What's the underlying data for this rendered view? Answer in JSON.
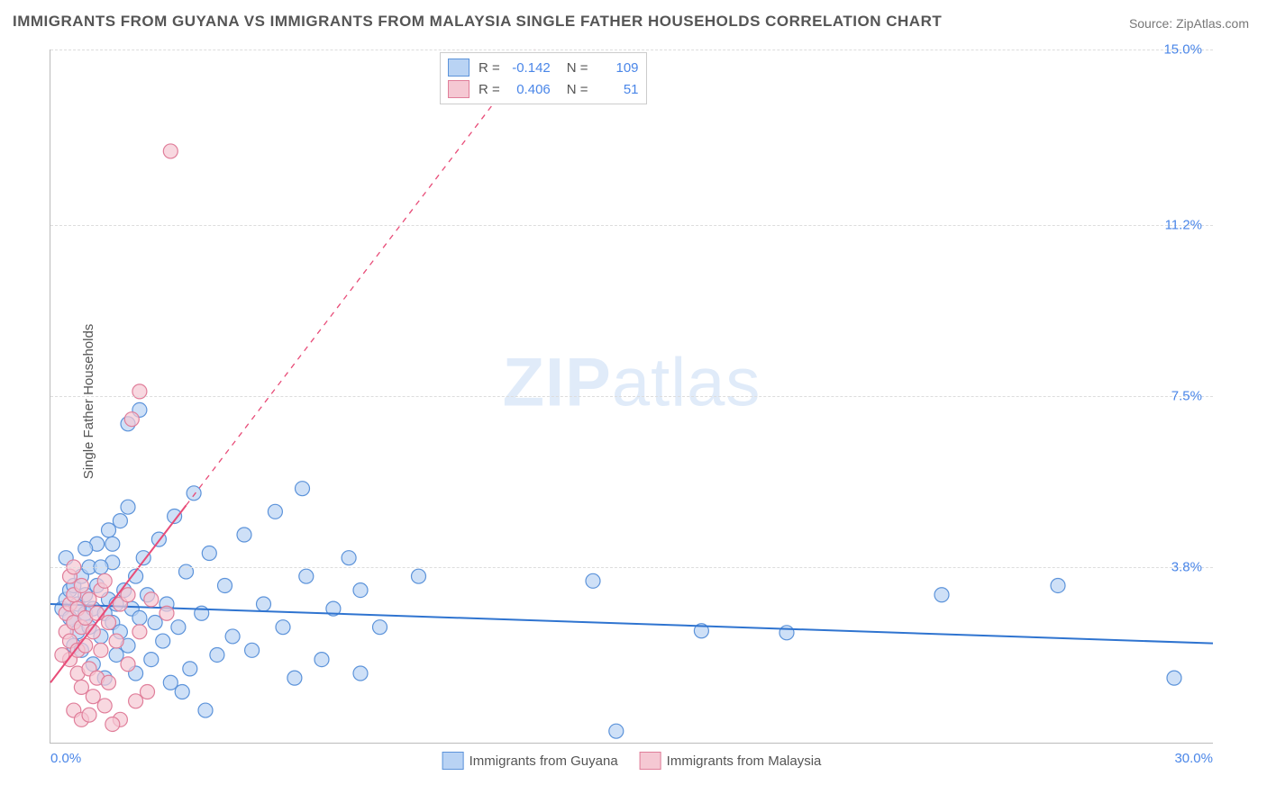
{
  "title": "IMMIGRANTS FROM GUYANA VS IMMIGRANTS FROM MALAYSIA SINGLE FATHER HOUSEHOLDS CORRELATION CHART",
  "source_prefix": "Source: ",
  "source_name": "ZipAtlas.com",
  "y_axis_label": "Single Father Households",
  "watermark_bold": "ZIP",
  "watermark_light": "atlas",
  "chart": {
    "type": "scatter",
    "xlim": [
      0,
      30
    ],
    "ylim": [
      0,
      15
    ],
    "x_ticks": [
      {
        "v": 0,
        "label": "0.0%"
      },
      {
        "v": 30,
        "label": "30.0%"
      }
    ],
    "y_ticks": [
      {
        "v": 3.8,
        "label": "3.8%"
      },
      {
        "v": 7.5,
        "label": "7.5%"
      },
      {
        "v": 11.2,
        "label": "11.2%"
      },
      {
        "v": 15.0,
        "label": "15.0%"
      }
    ],
    "grid_color": "#dddddd",
    "axis_color": "#bbbbbb",
    "background_color": "#ffffff",
    "marker_radius": 8,
    "marker_stroke_width": 1.2,
    "line_width": 2,
    "series": [
      {
        "id": "guyana",
        "label": "Immigrants from Guyana",
        "fill": "#b9d3f4",
        "stroke": "#5c93da",
        "trend_color": "#2f74d0",
        "trend_dash": "none",
        "stats": {
          "R": "-0.142",
          "N": "109"
        },
        "trend": {
          "x1": 0,
          "y1": 3.0,
          "x2": 30,
          "y2": 2.15
        },
        "points": [
          [
            0.3,
            2.9
          ],
          [
            0.4,
            3.1
          ],
          [
            0.5,
            2.7
          ],
          [
            0.5,
            3.3
          ],
          [
            0.6,
            2.6
          ],
          [
            0.6,
            3.4
          ],
          [
            0.6,
            2.1
          ],
          [
            0.7,
            3.0
          ],
          [
            0.7,
            2.4
          ],
          [
            0.8,
            3.6
          ],
          [
            0.8,
            2.0
          ],
          [
            0.9,
            2.8
          ],
          [
            0.9,
            3.2
          ],
          [
            1.0,
            2.5
          ],
          [
            1.0,
            3.8
          ],
          [
            1.1,
            1.7
          ],
          [
            1.1,
            2.9
          ],
          [
            1.2,
            3.4
          ],
          [
            1.2,
            4.3
          ],
          [
            1.3,
            2.3
          ],
          [
            1.4,
            2.8
          ],
          [
            1.4,
            1.4
          ],
          [
            1.5,
            3.1
          ],
          [
            1.5,
            4.6
          ],
          [
            1.6,
            2.6
          ],
          [
            1.6,
            3.9
          ],
          [
            1.7,
            1.9
          ],
          [
            1.7,
            3.0
          ],
          [
            1.8,
            2.4
          ],
          [
            1.8,
            4.8
          ],
          [
            1.9,
            3.3
          ],
          [
            2.0,
            2.1
          ],
          [
            2.0,
            5.1
          ],
          [
            2.1,
            2.9
          ],
          [
            2.2,
            3.6
          ],
          [
            2.2,
            1.5
          ],
          [
            2.3,
            2.7
          ],
          [
            2.4,
            4.0
          ],
          [
            2.5,
            3.2
          ],
          [
            2.6,
            1.8
          ],
          [
            2.7,
            2.6
          ],
          [
            2.8,
            4.4
          ],
          [
            2.9,
            2.2
          ],
          [
            3.0,
            3.0
          ],
          [
            3.1,
            1.3
          ],
          [
            3.2,
            4.9
          ],
          [
            3.3,
            2.5
          ],
          [
            3.5,
            3.7
          ],
          [
            3.6,
            1.6
          ],
          [
            3.7,
            5.4
          ],
          [
            3.9,
            2.8
          ],
          [
            4.1,
            4.1
          ],
          [
            4.3,
            1.9
          ],
          [
            4.5,
            3.4
          ],
          [
            4.7,
            2.3
          ],
          [
            5.0,
            4.5
          ],
          [
            5.2,
            2.0
          ],
          [
            5.5,
            3.0
          ],
          [
            5.8,
            5.0
          ],
          [
            6.0,
            2.5
          ],
          [
            6.3,
            1.4
          ],
          [
            6.6,
            3.6
          ],
          [
            7.0,
            1.8
          ],
          [
            7.3,
            2.9
          ],
          [
            7.7,
            4.0
          ],
          [
            8.0,
            1.5
          ],
          [
            8.5,
            2.5
          ],
          [
            9.5,
            3.6
          ],
          [
            6.5,
            5.5
          ],
          [
            3.4,
            1.1
          ],
          [
            2.0,
            6.9
          ],
          [
            2.3,
            7.2
          ],
          [
            4.0,
            0.7
          ],
          [
            0.9,
            4.2
          ],
          [
            1.6,
            4.3
          ],
          [
            1.3,
            3.8
          ],
          [
            0.4,
            4.0
          ],
          [
            8.0,
            3.3
          ],
          [
            14.0,
            3.5
          ],
          [
            16.8,
            2.42
          ],
          [
            19.0,
            2.38
          ],
          [
            23.0,
            3.2
          ],
          [
            26.0,
            3.4
          ],
          [
            29.0,
            1.4
          ],
          [
            14.6,
            0.25
          ]
        ]
      },
      {
        "id": "malaysia",
        "label": "Immigrants from Malaysia",
        "fill": "#f5c8d3",
        "stroke": "#e07e9a",
        "trend_color": "#e84c78",
        "trend_dash": "6 6",
        "stats": {
          "R": "0.406",
          "N": "51"
        },
        "trend": {
          "x1": 0,
          "y1": 1.3,
          "x2": 12.5,
          "y2": 15.0
        },
        "trend_solid_until_x": 3.5,
        "points": [
          [
            0.4,
            2.4
          ],
          [
            0.4,
            2.8
          ],
          [
            0.5,
            2.2
          ],
          [
            0.5,
            3.0
          ],
          [
            0.5,
            1.8
          ],
          [
            0.6,
            2.6
          ],
          [
            0.6,
            3.2
          ],
          [
            0.7,
            2.0
          ],
          [
            0.7,
            2.9
          ],
          [
            0.7,
            1.5
          ],
          [
            0.8,
            2.5
          ],
          [
            0.8,
            3.4
          ],
          [
            0.8,
            1.2
          ],
          [
            0.9,
            2.7
          ],
          [
            0.9,
            2.1
          ],
          [
            1.0,
            1.6
          ],
          [
            1.0,
            3.1
          ],
          [
            1.1,
            2.4
          ],
          [
            1.1,
            1.0
          ],
          [
            1.2,
            2.8
          ],
          [
            1.2,
            1.4
          ],
          [
            1.3,
            3.3
          ],
          [
            1.3,
            2.0
          ],
          [
            1.4,
            0.8
          ],
          [
            1.5,
            2.6
          ],
          [
            1.5,
            1.3
          ],
          [
            1.7,
            2.2
          ],
          [
            1.8,
            0.5
          ],
          [
            1.8,
            3.0
          ],
          [
            2.0,
            1.7
          ],
          [
            2.2,
            0.9
          ],
          [
            2.3,
            2.4
          ],
          [
            2.5,
            1.1
          ],
          [
            2.1,
            7.0
          ],
          [
            2.3,
            7.6
          ],
          [
            3.1,
            12.8
          ],
          [
            0.5,
            3.6
          ],
          [
            0.6,
            3.8
          ],
          [
            0.6,
            0.7
          ],
          [
            0.8,
            0.5
          ],
          [
            1.0,
            0.6
          ],
          [
            1.4,
            3.5
          ],
          [
            1.6,
            0.4
          ],
          [
            2.0,
            3.2
          ],
          [
            2.6,
            3.1
          ],
          [
            3.0,
            2.8
          ],
          [
            0.3,
            1.9
          ]
        ]
      }
    ]
  }
}
